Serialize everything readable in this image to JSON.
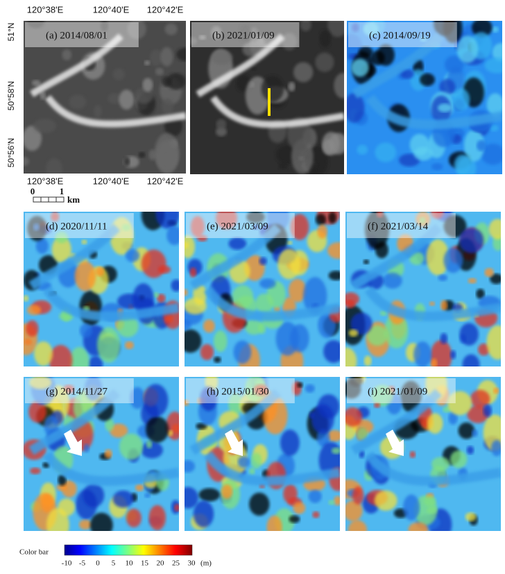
{
  "axes": {
    "top_lon": [
      "120°38'E",
      "120°40'E",
      "120°42'E"
    ],
    "left_lat": [
      "51°N",
      "50°58'N",
      "50°56'N"
    ],
    "bottom_lon": [
      "120°38'E",
      "120°40'E",
      "120°42'E"
    ]
  },
  "scale_bar": {
    "start": "0",
    "end": "1",
    "unit": "km"
  },
  "panels": [
    "(a) 2014/08/01",
    "(b) 2021/01/09",
    "(c) 2014/09/19",
    "(d) 2020/11/11",
    "(e) 2021/03/09",
    "(f) 2021/03/14",
    "(g) 2014/11/27",
    "(h) 2015/01/30",
    "(i) 2021/01/09"
  ],
  "color_bar": {
    "label": "Color bar",
    "ticks": [
      "-10",
      "-5",
      "0",
      "5",
      "10",
      "15",
      "20",
      "25",
      "30"
    ],
    "unit": "(m)"
  }
}
